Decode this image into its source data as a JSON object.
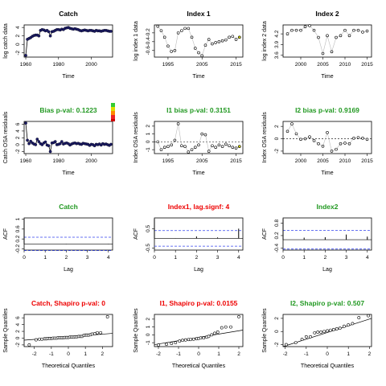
{
  "figure": {
    "grid": "4x3 R diagnostic panel"
  },
  "chart_data": [
    {
      "id": "catch",
      "type": "line",
      "title": "Catch",
      "title_color": "#000000",
      "xlabel": "Time",
      "ylabel": "log catch data",
      "xlim": [
        1959,
        2013
      ],
      "ylim": [
        -3.0,
        4.6
      ],
      "xticks": [
        1960,
        1980,
        2000
      ],
      "yticks": [
        -2,
        0,
        2,
        4
      ],
      "point_style": "filled-navy",
      "line_color": "#000000",
      "x": [
        1960,
        1961,
        1962,
        1963,
        1964,
        1965,
        1966,
        1967,
        1968,
        1969,
        1970,
        1971,
        1972,
        1973,
        1974,
        1975,
        1976,
        1977,
        1978,
        1979,
        1980,
        1981,
        1982,
        1983,
        1984,
        1985,
        1986,
        1987,
        1988,
        1989,
        1990,
        1991,
        1992,
        1993,
        1994,
        1995,
        1996,
        1997,
        1998,
        1999,
        2000,
        2001,
        2002,
        2003,
        2004,
        2005,
        2006,
        2007,
        2008,
        2009,
        2010,
        2011,
        2012
      ],
      "y": [
        -2.6,
        1.2,
        1.4,
        1.6,
        1.9,
        2.1,
        2.2,
        2.2,
        2.0,
        3.3,
        3.5,
        3.4,
        3.2,
        3.3,
        3.0,
        2.0,
        3.0,
        3.1,
        3.3,
        3.5,
        3.5,
        3.4,
        3.6,
        3.5,
        3.8,
        3.9,
        4.0,
        3.8,
        3.7,
        3.6,
        3.7,
        3.6,
        3.5,
        3.3,
        3.2,
        3.3,
        3.4,
        3.3,
        3.2,
        3.3,
        3.3,
        3.2,
        3.1,
        3.3,
        3.2,
        3.2,
        3.1,
        3.2,
        3.3,
        3.3,
        3.2,
        3.1,
        3.1
      ]
    },
    {
      "id": "index1",
      "type": "line",
      "title": "Index 1",
      "title_color": "#000000",
      "xlabel": "Time",
      "ylabel": "log index 1 data",
      "xlim": [
        1991,
        2017
      ],
      "ylim": [
        -0.75,
        -0.02
      ],
      "xticks": [
        1995,
        2005,
        2015
      ],
      "yticks": [
        -0.6,
        -0.4,
        -0.2
      ],
      "point_style": "open",
      "line_color": "#bbbbbb",
      "x": [
        1992,
        1993,
        1994,
        1995,
        1996,
        1997,
        1998,
        1999,
        2000,
        2001,
        2002,
        2003,
        2004,
        2005,
        2006,
        2007,
        2008,
        2009,
        2010,
        2011,
        2012,
        2013,
        2014,
        2015,
        2016
      ],
      "y": [
        -0.05,
        -0.15,
        -0.3,
        -0.5,
        -0.62,
        -0.6,
        -0.2,
        -0.15,
        -0.1,
        -0.1,
        -0.3,
        -0.55,
        -0.65,
        -0.72,
        -0.48,
        -0.35,
        -0.45,
        -0.42,
        -0.4,
        -0.38,
        -0.36,
        -0.3,
        -0.28,
        -0.35,
        -0.3
      ],
      "last_point_color": "#dddd00"
    },
    {
      "id": "index2",
      "type": "line",
      "title": "Index 2",
      "title_color": "#000000",
      "xlabel": "Time",
      "ylabel": "log index 2 data",
      "xlim": [
        1996,
        2016
      ],
      "ylim": [
        3.55,
        4.45
      ],
      "xticks": [
        2000,
        2005,
        2010,
        2015
      ],
      "yticks": [
        3.6,
        3.9,
        4.2
      ],
      "point_style": "open",
      "line_color": "#bbbbbb",
      "x": [
        1997,
        1998,
        1999,
        2000,
        2001,
        2002,
        2003,
        2004,
        2005,
        2006,
        2007,
        2008,
        2009,
        2010,
        2011,
        2012,
        2013,
        2014,
        2015
      ],
      "y": [
        4.2,
        4.3,
        4.3,
        4.3,
        4.4,
        4.43,
        4.3,
        4.1,
        3.65,
        4.15,
        3.7,
        4.1,
        4.15,
        4.3,
        4.15,
        4.3,
        4.3,
        4.25,
        4.28
      ]
    },
    {
      "id": "catch_osa",
      "type": "line",
      "title": "Bias p-val: 0.1223",
      "title_color": "#229922",
      "xlabel": "Time",
      "ylabel": "Catch OSA residuals",
      "xlim": [
        1959,
        2013
      ],
      "ylim": [
        -2.6,
        6.8
      ],
      "xticks": [
        1960,
        1980,
        2000
      ],
      "yticks": [
        -2,
        0,
        2,
        4,
        6
      ],
      "point_style": "filled-navy",
      "line_color": "#000000",
      "x": [
        1960,
        1961,
        1962,
        1963,
        1964,
        1965,
        1966,
        1967,
        1968,
        1969,
        1970,
        1971,
        1972,
        1973,
        1974,
        1975,
        1976,
        1977,
        1978,
        1979,
        1980,
        1981,
        1982,
        1983,
        1984,
        1985,
        1986,
        1987,
        1988,
        1989,
        1990,
        1991,
        1992,
        1993,
        1994,
        1995,
        1996,
        1997,
        1998,
        1999,
        2000,
        2001,
        2002,
        2003,
        2004,
        2005,
        2006,
        2007,
        2008,
        2009,
        2010,
        2011,
        2012
      ],
      "y": [
        6.3,
        1.3,
        0.3,
        1.0,
        0.5,
        0.2,
        0.0,
        1.6,
        0.9,
        0.3,
        0.0,
        0.5,
        0.8,
        -0.1,
        -0.3,
        -2.0,
        0.5,
        0.6,
        0.9,
        0.0,
        0.1,
        0.3,
        0.9,
        0.2,
        0.4,
        0.5,
        0.3,
        -0.1,
        0.2,
        0.4,
        0.5,
        0.3,
        0.4,
        0.2,
        0.1,
        0.4,
        0.3,
        0.2,
        0.1,
        -0.2,
        0.1,
        0.0,
        -0.3,
        0.1,
        0.0,
        0.2,
        -0.1,
        0.3,
        0.1,
        0.2,
        0.0,
        -0.2,
        0.1
      ]
    },
    {
      "id": "index1_osa",
      "type": "line",
      "title": "I1 bias p-val: 0.3151",
      "title_color": "#229922",
      "xlabel": "Time",
      "ylabel": "Index OSA residuals",
      "xlim": [
        1991,
        2017
      ],
      "ylim": [
        -1.5,
        2.6
      ],
      "xticks": [
        1995,
        2005,
        2015
      ],
      "yticks": [
        -1,
        0,
        1,
        2
      ],
      "point_style": "open",
      "line_color": "#bbbbbb",
      "hline": 0,
      "x": [
        1992,
        1993,
        1994,
        1995,
        1996,
        1997,
        1998,
        1999,
        2000,
        2001,
        2002,
        2003,
        2004,
        2005,
        2006,
        2007,
        2008,
        2009,
        2010,
        2011,
        2012,
        2013,
        2014,
        2015,
        2016
      ],
      "y": [
        0.0,
        -1.0,
        -0.7,
        -0.6,
        -0.4,
        0.2,
        2.3,
        -0.5,
        -0.6,
        -1.3,
        -1.0,
        -0.7,
        -0.4,
        1.0,
        0.9,
        -1.2,
        -0.5,
        -0.7,
        -0.4,
        -0.6,
        -0.3,
        -0.5,
        -0.7,
        -0.8,
        -0.6
      ],
      "last_point_color": "#dddd00"
    },
    {
      "id": "index2_osa",
      "type": "line",
      "title": "I2 bias p-val: 0.9169",
      "title_color": "#229922",
      "xlabel": "Time",
      "ylabel": "Index OSA residuals",
      "xlim": [
        1996,
        2016
      ],
      "ylim": [
        -2.4,
        2.8
      ],
      "xticks": [
        2000,
        2005,
        2010,
        2015
      ],
      "yticks": [
        -2,
        0,
        2
      ],
      "point_style": "open",
      "line_color": "#bbbbbb",
      "hline": 0,
      "x": [
        1997,
        1998,
        1999,
        2000,
        2001,
        2002,
        2003,
        2004,
        2005,
        2006,
        2007,
        2008,
        2009,
        2010,
        2011,
        2012,
        2013,
        2014,
        2015
      ],
      "y": [
        1.2,
        2.4,
        0.8,
        -0.1,
        0.0,
        0.3,
        -0.3,
        -0.8,
        -1.2,
        1.0,
        -2.0,
        -1.7,
        -0.8,
        -0.7,
        -0.8,
        0.1,
        0.2,
        0.1,
        -0.1
      ]
    },
    {
      "id": "catch_acf",
      "type": "acf",
      "title": "Catch",
      "title_color": "#229922",
      "xlabel": "Lag",
      "ylabel": "ACF",
      "xlim": [
        0,
        4.2
      ],
      "ylim": [
        -0.25,
        1.05
      ],
      "xticks": [
        0,
        1,
        2,
        3,
        4
      ],
      "yticks": [
        -0.2,
        0.2,
        0.6,
        1.0
      ],
      "ci": 0.27,
      "lags": [
        0,
        1,
        2,
        3,
        4
      ],
      "values": [
        1.0,
        0.01,
        -0.01,
        0.0,
        -0.01
      ]
    },
    {
      "id": "index1_acf",
      "type": "acf",
      "title": "Index1, lag.signf: 4",
      "title_color": "#ee0000",
      "xlabel": "Lag",
      "ylabel": "ACF",
      "xlim": [
        0,
        4.2
      ],
      "ylim": [
        -0.6,
        1.05
      ],
      "xticks": [
        0,
        1,
        2,
        3,
        4
      ],
      "yticks": [
        -0.5,
        0.5
      ],
      "ci": 0.4,
      "lags": [
        0,
        1,
        2,
        3,
        4
      ],
      "values": [
        1.0,
        0.01,
        0.1,
        0.05,
        0.5
      ]
    },
    {
      "id": "index2_acf",
      "type": "acf",
      "title": "Index2",
      "title_color": "#229922",
      "xlabel": "Lag",
      "ylabel": "ACF",
      "xlim": [
        0,
        4.2
      ],
      "ylim": [
        -0.5,
        1.05
      ],
      "xticks": [
        0,
        1,
        2,
        3,
        4
      ],
      "yticks": [
        -0.4,
        0.2,
        0.8
      ],
      "ci": 0.45,
      "lags": [
        0,
        1,
        2,
        3,
        4
      ],
      "values": [
        1.0,
        0.1,
        0.12,
        0.25,
        0.15
      ]
    },
    {
      "id": "catch_qq",
      "type": "scatter",
      "title": "Catch, Shapiro p-val: 0",
      "title_color": "#ee0000",
      "xlabel": "Theoretical Quantiles",
      "ylabel": "Sample Quantiles",
      "xlim": [
        -2.6,
        2.6
      ],
      "ylim": [
        -2.5,
        7.0
      ],
      "xticks": [
        -2,
        -1,
        0,
        1,
        2
      ],
      "yticks": [
        -2,
        0,
        2,
        4,
        6
      ],
      "ref_line": [
        [
          -2.6,
          -0.6
        ],
        [
          2.6,
          1.4
        ]
      ],
      "x": [
        -2.3,
        -1.9,
        -1.7,
        -1.55,
        -1.4,
        -1.3,
        -1.2,
        -1.1,
        -1.0,
        -0.9,
        -0.8,
        -0.7,
        -0.6,
        -0.5,
        -0.4,
        -0.3,
        -0.2,
        -0.1,
        0.0,
        0.1,
        0.2,
        0.3,
        0.4,
        0.5,
        0.6,
        0.7,
        0.8,
        0.9,
        1.0,
        1.1,
        1.2,
        1.3,
        1.4,
        1.55,
        1.7,
        1.9,
        2.3
      ],
      "y": [
        -2.0,
        -0.5,
        -0.3,
        -0.3,
        -0.2,
        -0.2,
        -0.1,
        -0.1,
        -0.1,
        0.0,
        0.0,
        0.0,
        0.1,
        0.1,
        0.1,
        0.1,
        0.2,
        0.2,
        0.2,
        0.3,
        0.3,
        0.3,
        0.4,
        0.4,
        0.5,
        0.5,
        0.5,
        0.8,
        0.9,
        0.9,
        0.9,
        1.0,
        1.2,
        1.3,
        1.6,
        1.6,
        6.3
      ]
    },
    {
      "id": "index1_qq",
      "type": "scatter",
      "title": "I1, Shapiro p-val: 0.0155",
      "title_color": "#ee0000",
      "xlabel": "Theoretical Quantiles",
      "ylabel": "Sample Quantiles",
      "xlim": [
        -2.2,
        2.2
      ],
      "ylim": [
        -1.5,
        2.6
      ],
      "xticks": [
        -2,
        -1,
        0,
        1,
        2
      ],
      "yticks": [
        -1,
        0,
        1,
        2
      ],
      "ref_line": [
        [
          -2.2,
          -1.25
        ],
        [
          2.2,
          0.6
        ]
      ],
      "x": [
        -2.0,
        -1.6,
        -1.35,
        -1.15,
        -0.95,
        -0.8,
        -0.65,
        -0.5,
        -0.4,
        -0.25,
        -0.1,
        0.0,
        0.1,
        0.25,
        0.4,
        0.5,
        0.65,
        0.8,
        0.95,
        1.15,
        1.35,
        1.6,
        2.0
      ],
      "y": [
        -1.3,
        -1.2,
        -1.1,
        -1.0,
        -0.8,
        -0.7,
        -0.65,
        -0.6,
        -0.6,
        -0.55,
        -0.5,
        -0.45,
        -0.4,
        -0.4,
        -0.3,
        -0.2,
        0.0,
        0.2,
        0.35,
        0.9,
        1.0,
        1.0,
        2.3
      ]
    },
    {
      "id": "index2_qq",
      "type": "scatter",
      "title": "I2, Shapiro p-val: 0.507",
      "title_color": "#229922",
      "xlabel": "Theoretical Quantiles",
      "ylabel": "Sample Quantiles",
      "xlim": [
        -2.1,
        2.1
      ],
      "ylim": [
        -2.3,
        2.6
      ],
      "xticks": [
        -2,
        -1,
        0,
        1,
        2
      ],
      "yticks": [
        -2,
        0,
        2
      ],
      "ref_line": [
        [
          -2.1,
          -2.3
        ],
        [
          2.1,
          2.0
        ]
      ],
      "x": [
        -1.95,
        -1.5,
        -1.2,
        -1.0,
        -0.8,
        -0.6,
        -0.45,
        -0.3,
        -0.15,
        0.0,
        0.15,
        0.3,
        0.45,
        0.6,
        0.8,
        1.0,
        1.2,
        1.5,
        1.95
      ],
      "y": [
        -2.0,
        -1.7,
        -1.2,
        -0.8,
        -0.8,
        -0.2,
        -0.1,
        -0.1,
        0.0,
        0.1,
        0.2,
        0.3,
        0.4,
        0.5,
        0.8,
        1.0,
        1.2,
        2.1,
        2.4
      ]
    }
  ]
}
